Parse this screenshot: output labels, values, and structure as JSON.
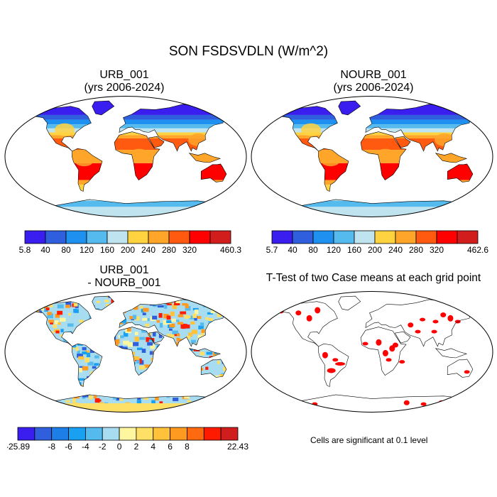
{
  "title": "SON FSDSVDLN (W/m^2)",
  "panels": {
    "urb": {
      "title_line1": "URB_001",
      "title_line2": "(yrs 2006-2024)"
    },
    "nourb": {
      "title_line1": "NOURB_001",
      "title_line2": "(yrs 2006-2024)"
    },
    "diff": {
      "title_line1": "URB_001",
      "title_line2": "- NOURB_001"
    },
    "ttest": {
      "title": "T-Test of two Case means at each grid point",
      "note": "Cells are significant at 0.1 level",
      "significant_color": "#ff0000"
    }
  },
  "colorbars": {
    "urb": {
      "colors": [
        "#3a1ef0",
        "#2f5fdc",
        "#1e90f0",
        "#55bbee",
        "#bfe4f0",
        "#ffd23f",
        "#ffa62a",
        "#ff5a10",
        "#ff0000",
        "#d21d1d"
      ],
      "labels": [
        "5.8",
        "40",
        "80",
        "120",
        "160",
        "200",
        "240",
        "280",
        "320",
        "460.3"
      ]
    },
    "nourb": {
      "colors": [
        "#3a1ef0",
        "#2f5fdc",
        "#1e90f0",
        "#55bbee",
        "#bfe4f0",
        "#ffd23f",
        "#ffa62a",
        "#ff5a10",
        "#ff0000",
        "#d21d1d"
      ],
      "labels": [
        "5.7",
        "40",
        "80",
        "120",
        "160",
        "200",
        "240",
        "280",
        "320",
        "462.6"
      ]
    },
    "diff": {
      "colors": [
        "#3a1ef0",
        "#2f5fdc",
        "#1e7ee8",
        "#19a0f0",
        "#55bbee",
        "#a8dcf0",
        "#fff7a0",
        "#ffe066",
        "#ffc23a",
        "#ff9a20",
        "#ff6a10",
        "#ff1a00",
        "#d01e1e"
      ],
      "labels": [
        "-25.89",
        "-8",
        "-6",
        "-4",
        "-2",
        "0",
        "2",
        "4",
        "6",
        "8",
        "22.43"
      ]
    }
  }
}
